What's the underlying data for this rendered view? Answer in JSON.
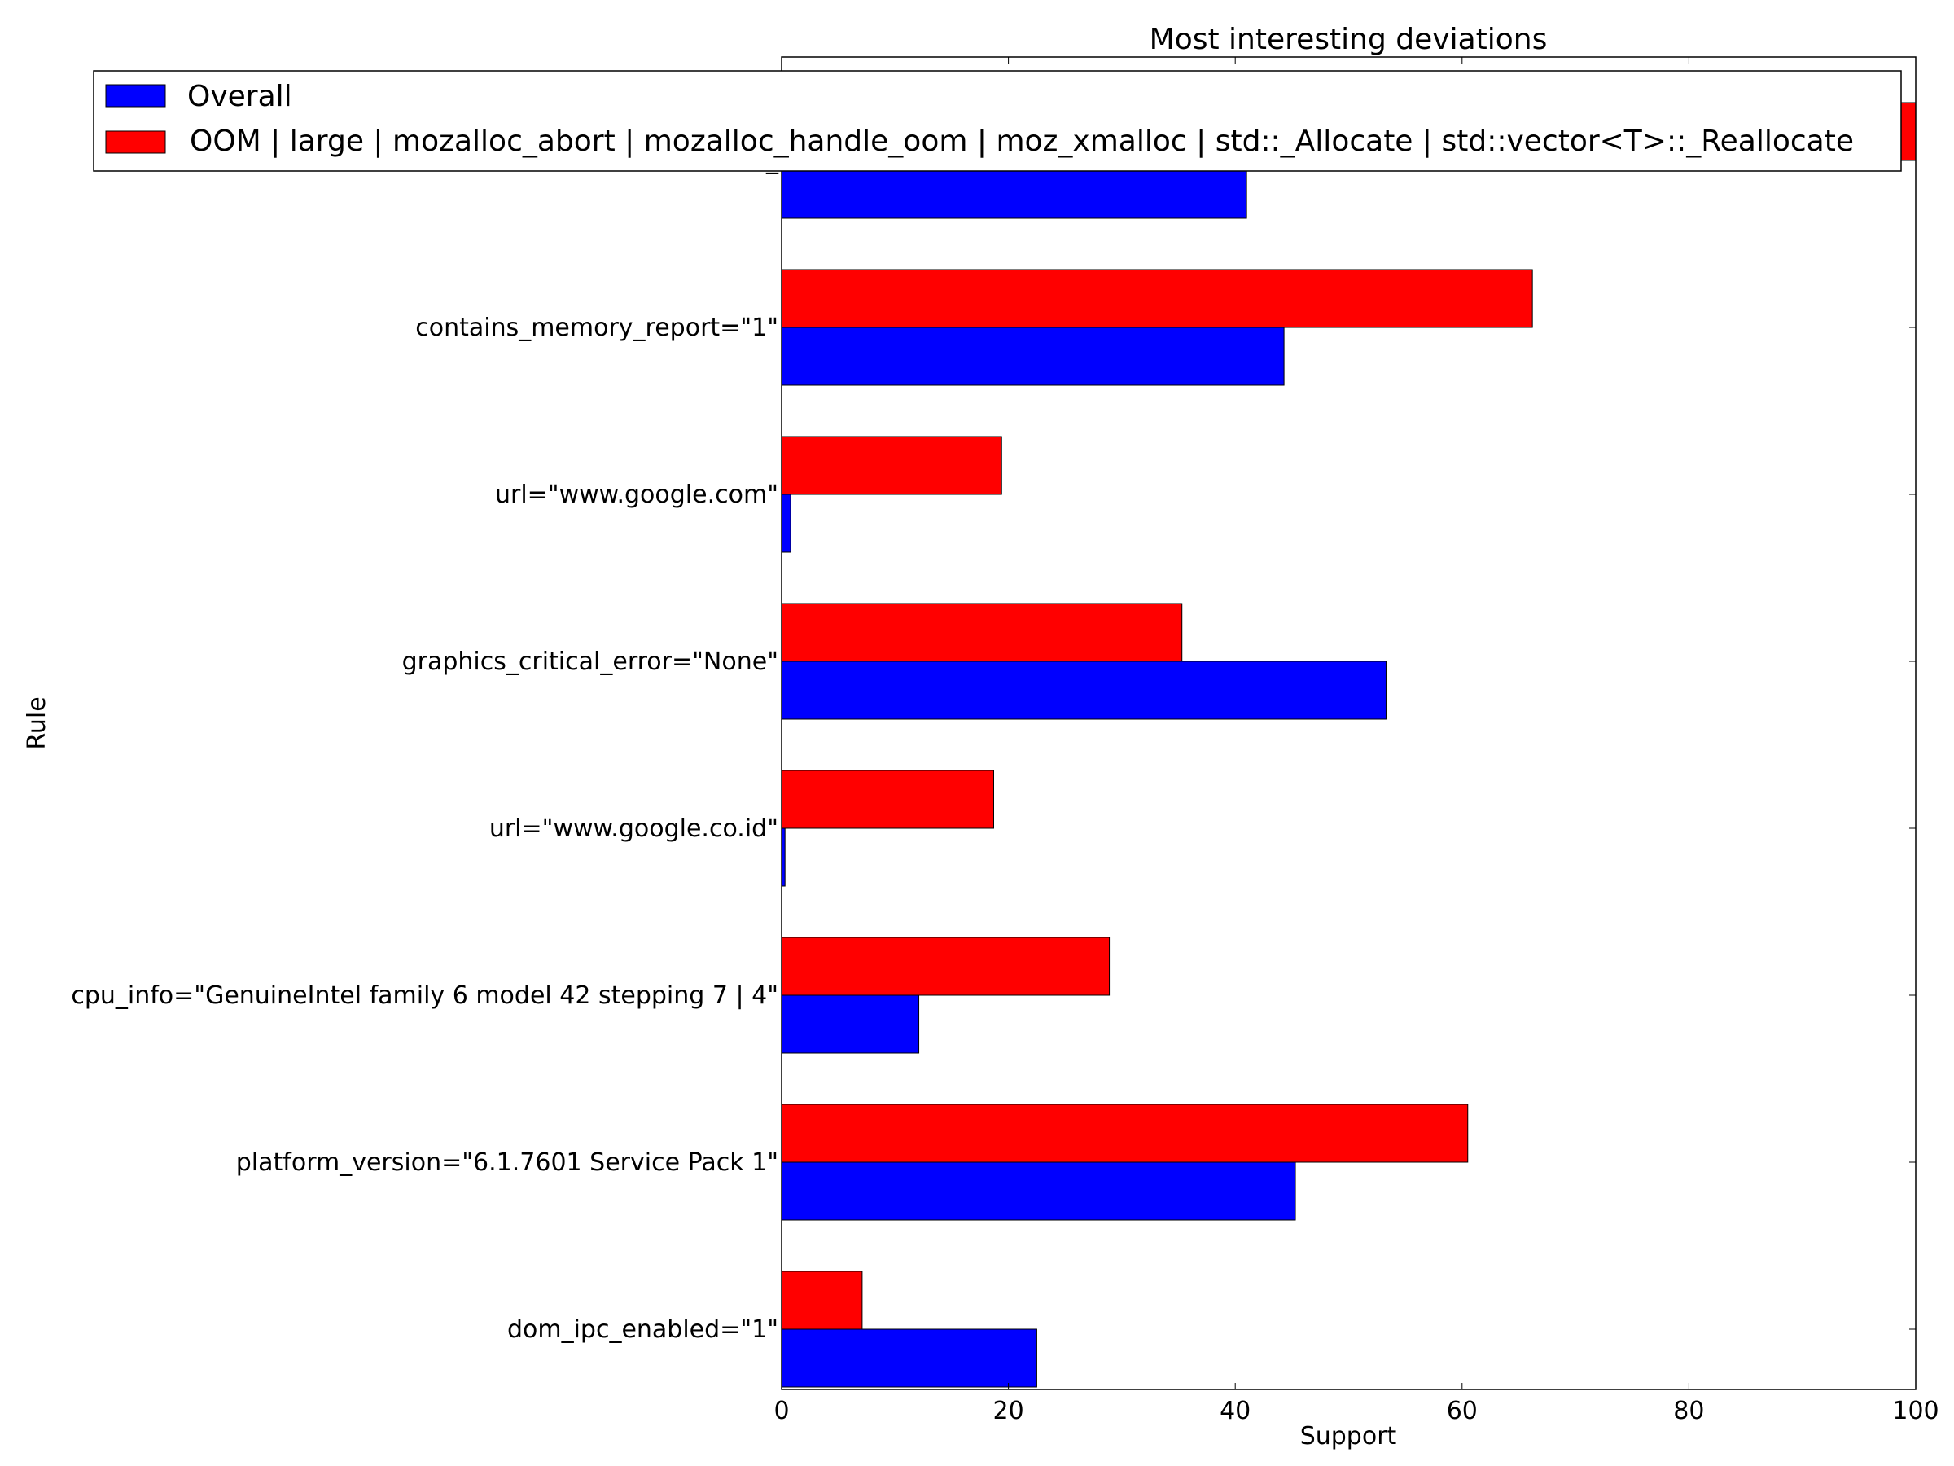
{
  "chart_data": {
    "type": "bar",
    "orientation": "horizontal",
    "title": "Most interesting deviations",
    "xlabel": "Support",
    "ylabel": "Rule",
    "xlim": [
      0,
      100
    ],
    "xticks": [
      0,
      20,
      40,
      60,
      80,
      100
    ],
    "grid": false,
    "legend_position": "top",
    "categories": [
      "dom_ipc_enabled=\"1\"",
      "platform_version=\"6.1.7601 Service Pack 1\"",
      "cpu_info=\"GenuineIntel family 6 model 42 stepping 7 | 4\"",
      "url=\"www.google.co.id\"",
      "graphics_critical_error=\"None\"",
      "url=\"www.google.com\"",
      "contains_memory_report=\"1\"",
      "_"
    ],
    "series": [
      {
        "name": "Overall",
        "color": "#0000ff",
        "values": [
          22.5,
          45.3,
          12.1,
          0.3,
          53.3,
          0.8,
          44.3,
          41.0
        ]
      },
      {
        "name": "OOM | large | mozalloc_abort | mozalloc_handle_oom | moz_xmalloc | std::_Allocate | std::vector<T>::_Reallocate",
        "color": "#ff0000",
        "values": [
          7.1,
          60.5,
          28.9,
          18.7,
          35.3,
          19.4,
          66.2,
          100
        ]
      }
    ]
  }
}
